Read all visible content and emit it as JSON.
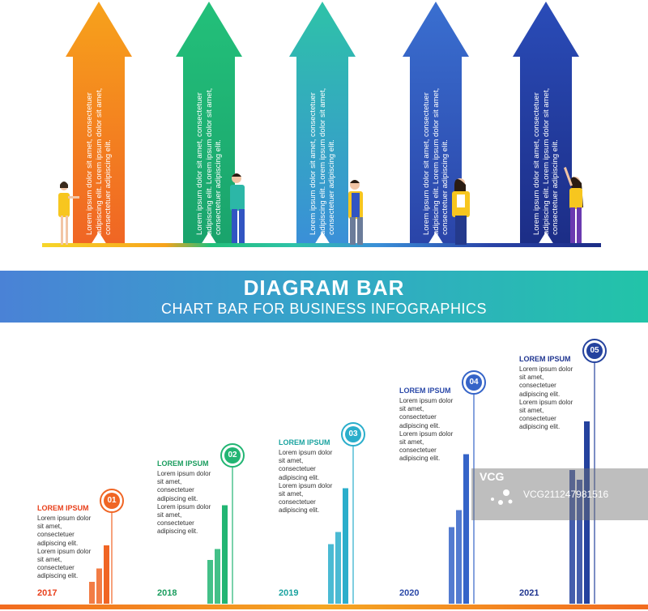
{
  "banner": {
    "title": "DIAGRAM BAR",
    "subtitle": "CHART BAR FOR BUSINESS INFOGRAPHICS"
  },
  "arrows": [
    {
      "text": "Lorem ipsum dolor sit amet, consectetuer adipiscing elit. Lorem ipsum dolor sit amet, consectetuer adipiscing elit.",
      "color_top": "#f7a21b",
      "color_bottom": "#f06524"
    },
    {
      "text": "Lorem ipsum dolor sit amet, consectetuer adipiscing elit. Lorem ipsum dolor sit amet, consectetuer adipiscing elit.",
      "color_top": "#23c07a",
      "color_bottom": "#1aa36c"
    },
    {
      "text": "Lorem ipsum dolor sit amet, consectetuer adipiscing elit. Lorem ipsum dolor sit amet, consectetuer adipiscing elit.",
      "color_top": "#2ec2a8",
      "color_bottom": "#3a8fd8"
    },
    {
      "text": "Lorem ipsum dolor sit amet, consectetuer adipiscing elit. Lorem ipsum dolor sit amet, consectetuer adipiscing elit.",
      "color_top": "#3a6fd0",
      "color_bottom": "#2a44a8"
    },
    {
      "text": "Lorem ipsum dolor sit amet, consectetuer adipiscing elit. Lorem ipsum dolor sit amet, consectetuer adipiscing elit.",
      "color_top": "#2a4cb8",
      "color_bottom": "#1c2d86"
    }
  ],
  "columns": [
    {
      "number": "01",
      "heading": "LOREM IPSUM",
      "body": "Lorem ipsum dolor sit amet, consectetuer adipiscing elit. Lorem ipsum dolor sit amet, consectetuer adipiscing elit.",
      "year": "2017",
      "color": "#f06524",
      "heading_color": "#e8401c",
      "bars": [
        0.18,
        0.29,
        0.48
      ]
    },
    {
      "number": "02",
      "heading": "LOREM IPSUM",
      "body": "Lorem ipsum dolor sit amet, consectetuer adipiscing elit. Lorem ipsum dolor sit amet, consectetuer adipiscing elit.",
      "year": "2018",
      "color": "#22b573",
      "heading_color": "#1a9d5e",
      "bars": [
        0.36,
        0.45,
        0.81
      ]
    },
    {
      "number": "03",
      "heading": "LOREM IPSUM",
      "body": "Lorem ipsum dolor sit amet, consectetuer adipiscing elit. Lorem ipsum dolor sit amet, consectetuer adipiscing elit.",
      "year": "2019",
      "color": "#2aaecb",
      "heading_color": "#1aa3a0",
      "bars": [
        0.49,
        0.59,
        0.95
      ]
    },
    {
      "number": "04",
      "heading": "LOREM IPSUM",
      "body": "Lorem ipsum dolor sit amet, consectetuer adipiscing elit. Lorem ipsum dolor sit amet, consectetuer adipiscing elit.",
      "year": "2020",
      "color": "#3564c8",
      "heading_color": "#2a48a8",
      "bars": [
        0.63,
        0.77,
        1.23
      ]
    },
    {
      "number": "05",
      "heading": "LOREM IPSUM",
      "body": "Lorem ipsum dolor sit amet, consectetuer adipiscing elit. Lorem ipsum dolor sit amet, consectetuer adipiscing elit.",
      "year": "2021",
      "color": "#24429e",
      "heading_color": "#1f3590",
      "bars": [
        1.1,
        1.02,
        1.5
      ]
    }
  ],
  "watermark": {
    "brand": "VCG",
    "id": "VCG21124798151​6"
  }
}
